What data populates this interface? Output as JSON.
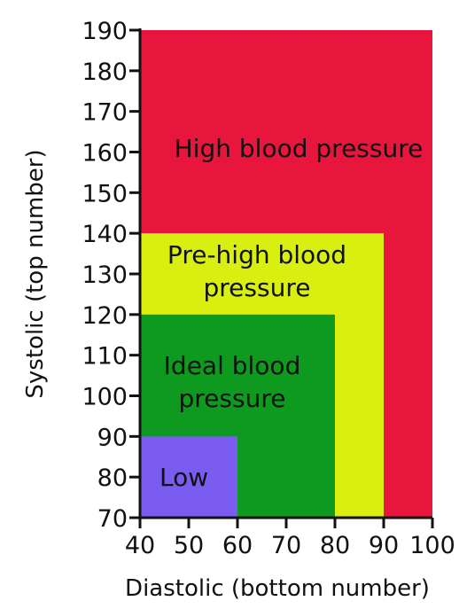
{
  "chart_data": {
    "type": "area",
    "title": "",
    "xlabel": "Diastolic (bottom number)",
    "ylabel": "Systolic (top number)",
    "xlim": [
      40,
      100
    ],
    "ylim": [
      70,
      190
    ],
    "x_ticks": [
      40,
      50,
      60,
      70,
      80,
      90,
      100
    ],
    "y_ticks": [
      70,
      80,
      90,
      100,
      110,
      120,
      130,
      140,
      150,
      160,
      170,
      180,
      190
    ],
    "grid": false,
    "regions": [
      {
        "label_lines": [
          "High blood pressure"
        ],
        "x": [
          40,
          100
        ],
        "y": [
          70,
          190
        ],
        "color": "#e8163c"
      },
      {
        "label_lines": [
          "Pre-high blood",
          "pressure"
        ],
        "x": [
          40,
          90
        ],
        "y": [
          70,
          140
        ],
        "color": "#d9ef0f"
      },
      {
        "label_lines": [
          "Ideal blood",
          "pressure"
        ],
        "x": [
          40,
          80
        ],
        "y": [
          70,
          120
        ],
        "color": "#0e9a1e"
      },
      {
        "label_lines": [
          "Low"
        ],
        "x": [
          40,
          60
        ],
        "y": [
          70,
          90
        ],
        "color": "#7a5cf0"
      }
    ]
  }
}
